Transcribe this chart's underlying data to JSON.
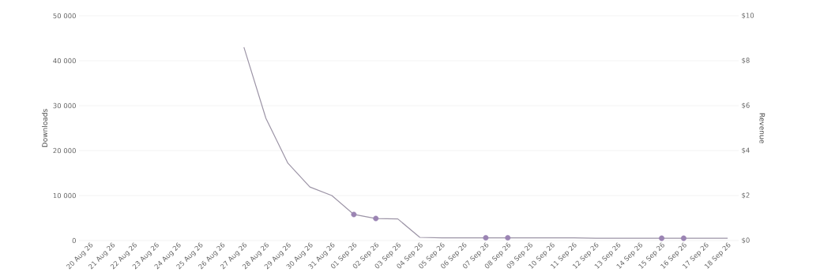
{
  "chart_data": {
    "type": "line",
    "ylabel": "Downloads",
    "y2label": "Revenue",
    "categories": [
      "20 Aug 26",
      "21 Aug 26",
      "22 Aug 26",
      "23 Aug 26",
      "24 Aug 26",
      "25 Aug 26",
      "26 Aug 26",
      "27 Aug 26",
      "28 Aug 26",
      "29 Aug 26",
      "30 Aug 26",
      "31 Aug 26",
      "01 Sep 26",
      "02 Sep 26",
      "03 Sep 26",
      "04 Sep 26",
      "05 Sep 26",
      "06 Sep 26",
      "07 Sep 26",
      "08 Sep 26",
      "09 Sep 26",
      "10 Sep 26",
      "11 Sep 26",
      "12 Sep 26",
      "13 Sep 26",
      "14 Sep 26",
      "15 Sep 26",
      "16 Sep 26",
      "17 Sep 26",
      "18 Sep 26"
    ],
    "series": [
      {
        "color": "#9c94a6",
        "values": [
          null,
          null,
          null,
          null,
          null,
          null,
          null,
          43000,
          27200,
          17200,
          11900,
          10000,
          5800,
          4900,
          4800,
          700,
          600,
          600,
          600,
          600,
          600,
          600,
          600,
          500,
          500,
          500,
          500,
          500,
          500,
          500
        ]
      },
      {
        "type": "scatter",
        "color": "#9b84b3",
        "x": [
          "01 Sep 26",
          "02 Sep 26",
          "07 Sep 26",
          "08 Sep 26",
          "15 Sep 26",
          "16 Sep 26"
        ],
        "values": [
          5800,
          4900,
          600,
          600,
          500,
          500
        ]
      }
    ],
    "ylim": [
      0,
      50000
    ],
    "yticks": [
      0,
      {
        "value": 10000,
        "label": "10 000"
      },
      {
        "value": 20000,
        "label": "20 000"
      },
      {
        "value": 30000,
        "label": "30 000"
      },
      {
        "value": 40000,
        "label": "40 000"
      },
      {
        "value": 50000,
        "label": "50 000"
      }
    ],
    "y2lim": [
      0,
      10
    ],
    "y2ticks": [
      {
        "value": 0,
        "label": "$0"
      },
      {
        "value": 2,
        "label": "$2"
      },
      {
        "value": 4,
        "label": "$4"
      },
      {
        "value": 6,
        "label": "$6"
      },
      {
        "value": 8,
        "label": "$8"
      },
      {
        "value": 10,
        "label": "$10"
      }
    ],
    "grid": "y",
    "legend": false
  }
}
